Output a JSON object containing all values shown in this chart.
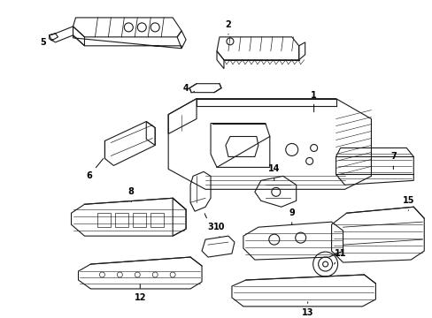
{
  "background_color": "#ffffff",
  "line_color": "#1a1a1a",
  "label_color": "#000000",
  "lw": 0.8
}
